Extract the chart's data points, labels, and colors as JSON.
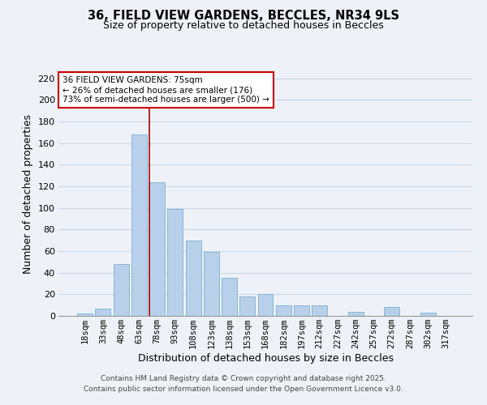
{
  "title_line1": "36, FIELD VIEW GARDENS, BECCLES, NR34 9LS",
  "title_line2": "Size of property relative to detached houses in Beccles",
  "xlabel": "Distribution of detached houses by size in Beccles",
  "ylabel": "Number of detached properties",
  "bar_labels": [
    "18sqm",
    "33sqm",
    "48sqm",
    "63sqm",
    "78sqm",
    "93sqm",
    "108sqm",
    "123sqm",
    "138sqm",
    "153sqm",
    "168sqm",
    "182sqm",
    "197sqm",
    "212sqm",
    "227sqm",
    "242sqm",
    "257sqm",
    "272sqm",
    "287sqm",
    "302sqm",
    "317sqm"
  ],
  "bar_values": [
    2,
    7,
    48,
    168,
    124,
    99,
    70,
    59,
    35,
    18,
    20,
    10,
    10,
    10,
    0,
    4,
    0,
    8,
    0,
    3,
    0
  ],
  "bar_color": "#b8d0ea",
  "bar_edge_color": "#7aafd4",
  "highlight_index": 4,
  "highlight_line_color": "#aa0000",
  "annotation_line1": "36 FIELD VIEW GARDENS: 75sqm",
  "annotation_line2": "← 26% of detached houses are smaller (176)",
  "annotation_line3": "73% of semi-detached houses are larger (500) →",
  "annotation_box_color": "#ffffff",
  "annotation_box_edge": "#cc0000",
  "ylim": [
    0,
    225
  ],
  "yticks": [
    0,
    20,
    40,
    60,
    80,
    100,
    120,
    140,
    160,
    180,
    200,
    220
  ],
  "grid_color": "#c8d8e8",
  "background_color": "#eef2f8",
  "footer_line1": "Contains HM Land Registry data © Crown copyright and database right 2025.",
  "footer_line2": "Contains public sector information licensed under the Open Government Licence v3.0."
}
